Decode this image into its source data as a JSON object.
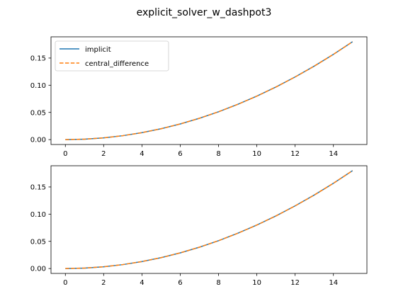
{
  "figure": {
    "suptitle": "explicit_solver_w_dashpot3"
  },
  "chart_data": [
    {
      "type": "line",
      "title": "",
      "xlabel": "",
      "ylabel": "",
      "xlim": [
        -0.75,
        15.75
      ],
      "ylim": [
        -0.009,
        0.189
      ],
      "xticks": [
        0,
        2,
        4,
        6,
        8,
        10,
        12,
        14
      ],
      "yticks": [
        0.0,
        0.05,
        0.1,
        0.15
      ],
      "ytick_labels": [
        "0.00",
        "0.05",
        "0.10",
        "0.15"
      ],
      "grid": false,
      "legend": {
        "show": true,
        "position": "upper left"
      },
      "series": [
        {
          "name": "implicit",
          "style": "solid",
          "color": "#1f77b4",
          "x": [
            0,
            1,
            2,
            3,
            4,
            5,
            6,
            7,
            8,
            9,
            10,
            11,
            12,
            13,
            14,
            15
          ],
          "y": [
            0.0,
            0.0008,
            0.0032,
            0.0072,
            0.0128,
            0.02,
            0.0288,
            0.0392,
            0.0512,
            0.0648,
            0.08,
            0.0968,
            0.1152,
            0.1352,
            0.1568,
            0.18
          ]
        },
        {
          "name": "central_difference",
          "style": "dashed",
          "color": "#ff7f0e",
          "x": [
            0,
            1,
            2,
            3,
            4,
            5,
            6,
            7,
            8,
            9,
            10,
            11,
            12,
            13,
            14,
            15
          ],
          "y": [
            0.0,
            0.0008,
            0.0032,
            0.0072,
            0.0128,
            0.02,
            0.0288,
            0.0392,
            0.0512,
            0.0648,
            0.08,
            0.0968,
            0.1152,
            0.1352,
            0.1568,
            0.18
          ]
        }
      ]
    },
    {
      "type": "line",
      "title": "",
      "xlabel": "",
      "ylabel": "",
      "xlim": [
        -0.75,
        15.75
      ],
      "ylim": [
        -0.009,
        0.189
      ],
      "xticks": [
        0,
        2,
        4,
        6,
        8,
        10,
        12,
        14
      ],
      "yticks": [
        0.0,
        0.05,
        0.1,
        0.15
      ],
      "ytick_labels": [
        "0.00",
        "0.05",
        "0.10",
        "0.15"
      ],
      "grid": false,
      "legend": {
        "show": false
      },
      "series": [
        {
          "style": "solid",
          "color": "#1f77b4",
          "x": [
            0,
            1,
            2,
            3,
            4,
            5,
            6,
            7,
            8,
            9,
            10,
            11,
            12,
            13,
            14,
            15
          ],
          "y": [
            0.0,
            0.0008,
            0.0032,
            0.0072,
            0.0128,
            0.02,
            0.0288,
            0.0392,
            0.0512,
            0.0648,
            0.08,
            0.0968,
            0.1152,
            0.1352,
            0.1568,
            0.18
          ]
        },
        {
          "style": "dashed",
          "color": "#ff7f0e",
          "x": [
            0,
            1,
            2,
            3,
            4,
            5,
            6,
            7,
            8,
            9,
            10,
            11,
            12,
            13,
            14,
            15
          ],
          "y": [
            0.0,
            0.0008,
            0.0032,
            0.0072,
            0.0128,
            0.02,
            0.0288,
            0.0392,
            0.0512,
            0.0648,
            0.08,
            0.0968,
            0.1152,
            0.1352,
            0.1568,
            0.18
          ]
        }
      ]
    }
  ]
}
